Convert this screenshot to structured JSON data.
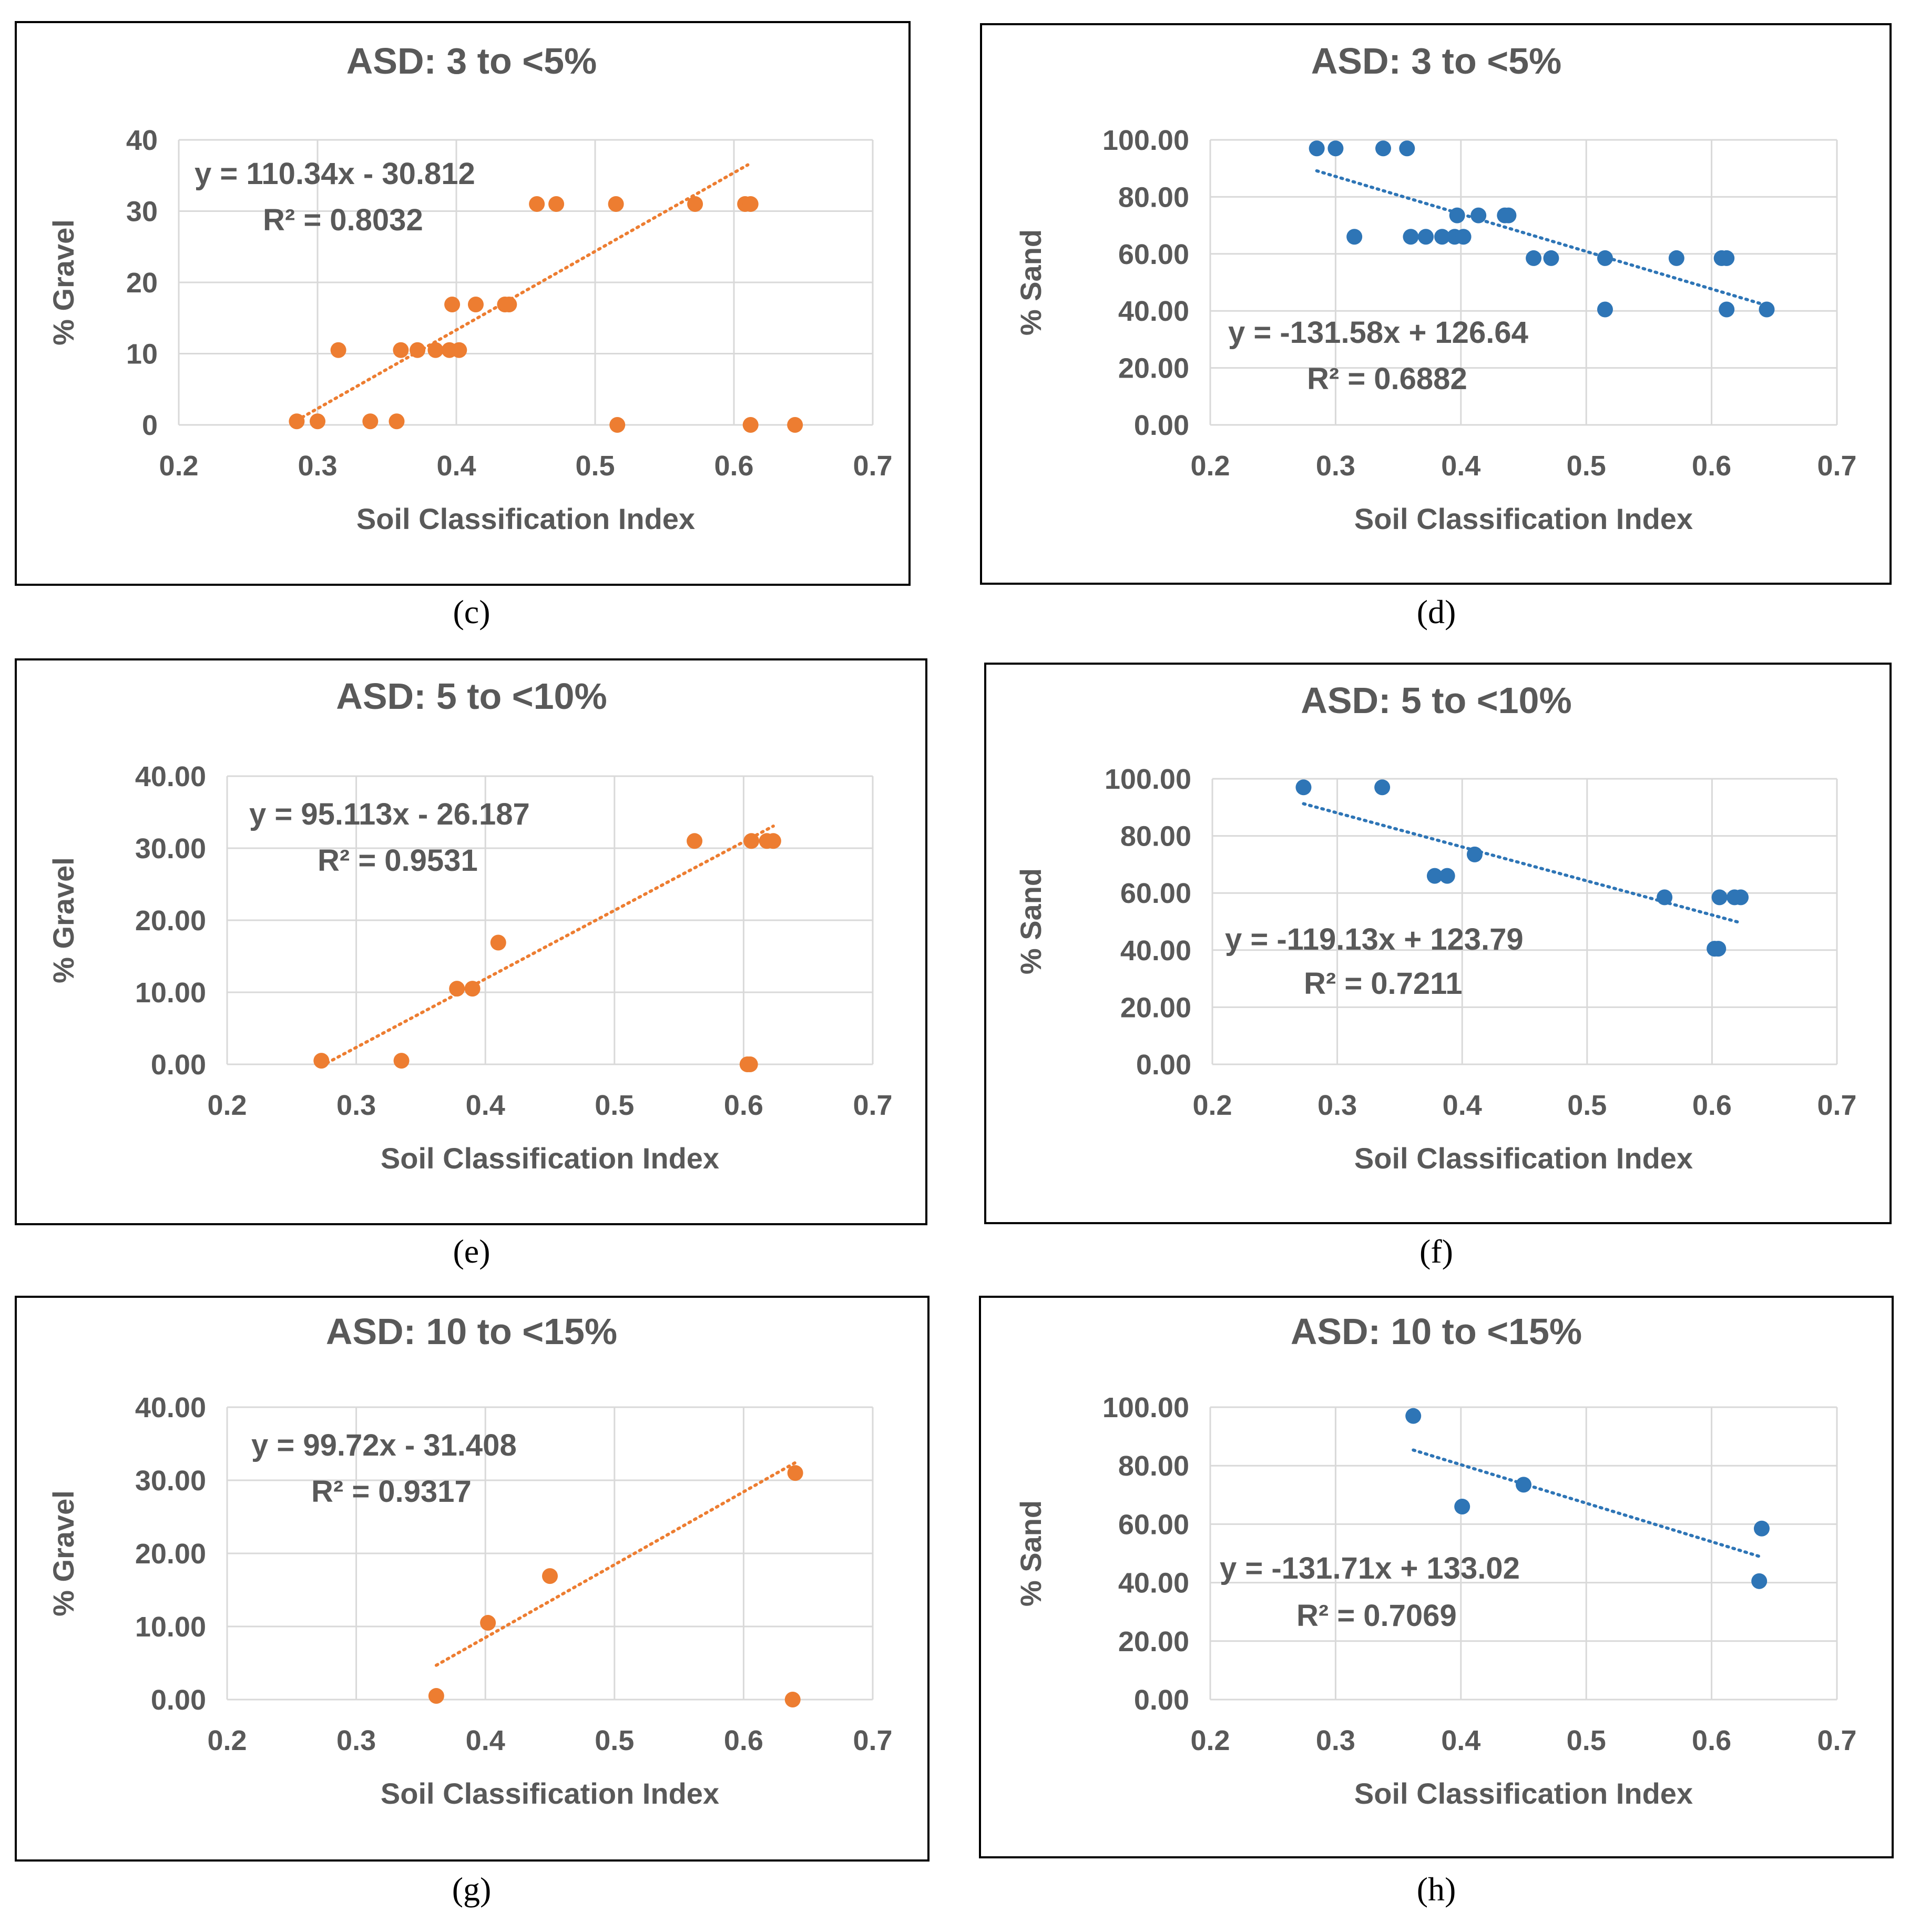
{
  "chart_data": [
    {
      "panel": "(c)",
      "type": "scatter",
      "title": "ASD: 3 to <5%",
      "xlabel": "Soil Classification Index",
      "ylabel": "% Gravel",
      "xlim": [
        0.2,
        0.7
      ],
      "ylim": [
        0,
        40
      ],
      "xticks": [
        "0.2",
        "0.3",
        "0.4",
        "0.5",
        "0.6",
        "0.7"
      ],
      "yticks": [
        "0",
        "10",
        "20",
        "30",
        "40"
      ],
      "color": "#ED7D31",
      "points": [
        [
          0.285,
          0.5
        ],
        [
          0.3,
          0.5
        ],
        [
          0.315,
          10.5
        ],
        [
          0.338,
          0.5
        ],
        [
          0.357,
          0.5
        ],
        [
          0.36,
          10.5
        ],
        [
          0.372,
          10.5
        ],
        [
          0.385,
          10.5
        ],
        [
          0.395,
          10.5
        ],
        [
          0.402,
          10.5
        ],
        [
          0.397,
          16.9
        ],
        [
          0.414,
          16.9
        ],
        [
          0.435,
          16.9
        ],
        [
          0.438,
          16.9
        ],
        [
          0.458,
          31
        ],
        [
          0.472,
          31
        ],
        [
          0.515,
          31
        ],
        [
          0.572,
          31
        ],
        [
          0.608,
          31
        ],
        [
          0.612,
          31
        ],
        [
          0.516,
          0
        ],
        [
          0.612,
          0
        ],
        [
          0.644,
          0
        ]
      ],
      "trend": {
        "slope": 110.34,
        "intercept": -30.812,
        "x": [
          0.285,
          0.61
        ]
      },
      "equation": "y = 110.34x - 30.812",
      "r2": "R² = 0.8032"
    },
    {
      "panel": "(d)",
      "type": "scatter",
      "title": "ASD: 3 to <5%",
      "xlabel": "Soil Classification Index",
      "ylabel": "% Sand",
      "xlim": [
        0.2,
        0.7
      ],
      "ylim": [
        0,
        100
      ],
      "xticks": [
        "0.2",
        "0.3",
        "0.4",
        "0.5",
        "0.6",
        "0.7"
      ],
      "yticks": [
        "0.00",
        "20.00",
        "40.00",
        "60.00",
        "80.00",
        "100.00"
      ],
      "color": "#2E75B6",
      "points": [
        [
          0.285,
          97
        ],
        [
          0.3,
          97
        ],
        [
          0.338,
          97
        ],
        [
          0.357,
          97
        ],
        [
          0.315,
          66
        ],
        [
          0.36,
          66
        ],
        [
          0.372,
          66
        ],
        [
          0.385,
          66
        ],
        [
          0.395,
          66
        ],
        [
          0.402,
          66
        ],
        [
          0.397,
          73.5
        ],
        [
          0.414,
          73.5
        ],
        [
          0.435,
          73.5
        ],
        [
          0.438,
          73.5
        ],
        [
          0.458,
          58.5
        ],
        [
          0.472,
          58.5
        ],
        [
          0.515,
          58.5
        ],
        [
          0.572,
          58.5
        ],
        [
          0.608,
          58.5
        ],
        [
          0.612,
          58.5
        ],
        [
          0.515,
          40.5
        ],
        [
          0.612,
          40.5
        ],
        [
          0.644,
          40.5
        ]
      ],
      "trend": {
        "slope": -131.58,
        "intercept": 126.64,
        "x": [
          0.285,
          0.644
        ]
      },
      "equation": "y = -131.58x + 126.64",
      "r2": "R² = 0.6882"
    },
    {
      "panel": "(e)",
      "type": "scatter",
      "title": "ASD: 5 to <10%",
      "xlabel": "Soil Classification Index",
      "ylabel": "% Gravel",
      "xlim": [
        0.2,
        0.7
      ],
      "ylim": [
        0,
        40
      ],
      "xticks": [
        "0.2",
        "0.3",
        "0.4",
        "0.5",
        "0.6",
        "0.7"
      ],
      "yticks": [
        "0.00",
        "10.00",
        "20.00",
        "30.00",
        "40.00"
      ],
      "color": "#ED7D31",
      "points": [
        [
          0.273,
          0.5
        ],
        [
          0.335,
          0.5
        ],
        [
          0.378,
          10.5
        ],
        [
          0.39,
          10.5
        ],
        [
          0.41,
          16.9
        ],
        [
          0.562,
          31
        ],
        [
          0.606,
          31
        ],
        [
          0.618,
          31
        ],
        [
          0.623,
          31
        ],
        [
          0.603,
          0
        ],
        [
          0.605,
          0
        ]
      ],
      "trend": {
        "slope": 95.113,
        "intercept": -26.187,
        "x": [
          0.273,
          0.623
        ]
      },
      "equation": "y = 95.113x - 26.187",
      "r2": "R² = 0.9531"
    },
    {
      "panel": "(f)",
      "type": "scatter",
      "title": "ASD: 5 to <10%",
      "xlabel": "Soil Classification Index",
      "ylabel": "% Sand",
      "xlim": [
        0.2,
        0.7
      ],
      "ylim": [
        0,
        100
      ],
      "xticks": [
        "0.2",
        "0.3",
        "0.4",
        "0.5",
        "0.6",
        "0.7"
      ],
      "yticks": [
        "0.00",
        "20.00",
        "40.00",
        "60.00",
        "80.00",
        "100.00"
      ],
      "color": "#2E75B6",
      "points": [
        [
          0.273,
          97
        ],
        [
          0.336,
          97
        ],
        [
          0.378,
          66
        ],
        [
          0.388,
          66
        ],
        [
          0.41,
          73.5
        ],
        [
          0.562,
          58.5
        ],
        [
          0.606,
          58.5
        ],
        [
          0.618,
          58.5
        ],
        [
          0.623,
          58.5
        ],
        [
          0.602,
          40.5
        ],
        [
          0.605,
          40.5
        ]
      ],
      "trend": {
        "slope": -119.13,
        "intercept": 123.79,
        "x": [
          0.273,
          0.623
        ]
      },
      "equation": "y = -119.13x + 123.79",
      "r2": "R² = 0.7211"
    },
    {
      "panel": "(g)",
      "type": "scatter",
      "title": "ASD: 10 to <15%",
      "xlabel": "Soil Classification Index",
      "ylabel": "% Gravel",
      "xlim": [
        0.2,
        0.7
      ],
      "ylim": [
        0,
        40
      ],
      "xticks": [
        "0.2",
        "0.3",
        "0.4",
        "0.5",
        "0.6",
        "0.7"
      ],
      "yticks": [
        "0.00",
        "10.00",
        "20.00",
        "30.00",
        "40.00"
      ],
      "color": "#ED7D31",
      "points": [
        [
          0.362,
          0.5
        ],
        [
          0.402,
          10.5
        ],
        [
          0.45,
          16.9
        ],
        [
          0.64,
          31
        ],
        [
          0.638,
          0
        ]
      ],
      "trend": {
        "slope": 99.72,
        "intercept": -31.408,
        "x": [
          0.362,
          0.64
        ]
      },
      "equation": "y = 99.72x - 31.408",
      "r2": "R² = 0.9317"
    },
    {
      "panel": "(h)",
      "type": "scatter",
      "title": "ASD: 10 to <15%",
      "xlabel": "Soil Classification Index",
      "ylabel": "% Sand",
      "xlim": [
        0.2,
        0.7
      ],
      "ylim": [
        0,
        100
      ],
      "xticks": [
        "0.2",
        "0.3",
        "0.4",
        "0.5",
        "0.6",
        "0.7"
      ],
      "yticks": [
        "0.00",
        "20.00",
        "40.00",
        "60.00",
        "80.00",
        "100.00"
      ],
      "color": "#2E75B6",
      "points": [
        [
          0.362,
          97
        ],
        [
          0.401,
          66
        ],
        [
          0.45,
          73.5
        ],
        [
          0.64,
          58.5
        ],
        [
          0.638,
          40.5
        ]
      ],
      "trend": {
        "slope": -131.71,
        "intercept": 133.02,
        "x": [
          0.362,
          0.64
        ]
      },
      "equation": "y = -131.71x + 133.02",
      "r2": "R² = 0.7069"
    }
  ]
}
